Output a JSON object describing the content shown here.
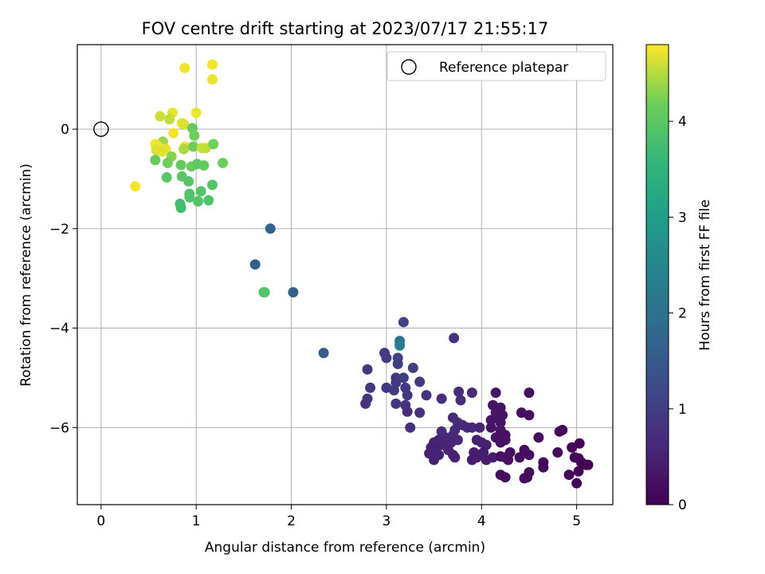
{
  "chart_data": {
    "type": "scatter",
    "title": "FOV centre drift starting at 2023/07/17 21:55:17",
    "xlabel": "Angular distance from reference (arcmin)",
    "ylabel": "Rotation from reference (arcmin)",
    "xlim": [
      -0.25,
      5.38
    ],
    "ylim": [
      -7.55,
      1.7
    ],
    "xticks": [
      "0",
      "1",
      "2",
      "3",
      "4",
      "5"
    ],
    "yticks": [
      "0",
      "−2",
      "−4",
      "−6"
    ],
    "grid": true,
    "legend": {
      "position": "top-right",
      "entries": [
        "Reference platepar"
      ]
    },
    "colorbar": {
      "label": "Hours from first FF file",
      "range": [
        0,
        4.8
      ],
      "ticks": [
        "0",
        "1",
        "2",
        "3",
        "4"
      ],
      "colormap": "viridis"
    },
    "reference_point": {
      "x": 0,
      "y": 0,
      "label": "Reference platepar"
    },
    "series": [
      {
        "points": [
          [
            0.88,
            1.23,
            4.75
          ],
          [
            1.17,
            1.3,
            4.75
          ],
          [
            1.17,
            1.0,
            4.72
          ],
          [
            1.0,
            0.33,
            4.72
          ],
          [
            0.75,
            0.33,
            4.7
          ],
          [
            0.62,
            0.26,
            4.6
          ],
          [
            0.72,
            0.2,
            4.55
          ],
          [
            0.85,
            0.12,
            4.7
          ],
          [
            0.87,
            0.1,
            4.65
          ],
          [
            0.96,
            0.02,
            4.1
          ],
          [
            0.76,
            -0.08,
            4.75
          ],
          [
            0.98,
            -0.13,
            4.2
          ],
          [
            0.65,
            -0.25,
            4.4
          ],
          [
            0.57,
            -0.3,
            4.75
          ],
          [
            0.6,
            -0.35,
            4.73
          ],
          [
            0.62,
            -0.38,
            4.72
          ],
          [
            0.68,
            -0.4,
            4.7
          ],
          [
            0.64,
            -0.45,
            4.68
          ],
          [
            0.58,
            -0.42,
            4.66
          ],
          [
            0.88,
            -0.35,
            4.73
          ],
          [
            0.87,
            -0.4,
            4.45
          ],
          [
            0.97,
            -0.35,
            4.2
          ],
          [
            1.06,
            -0.38,
            4.6
          ],
          [
            1.1,
            -0.38,
            4.55
          ],
          [
            1.18,
            -0.3,
            4.2
          ],
          [
            0.74,
            -0.55,
            4.3
          ],
          [
            0.57,
            -0.62,
            4.1
          ],
          [
            0.7,
            -0.68,
            4.2
          ],
          [
            0.84,
            -0.72,
            4.1
          ],
          [
            0.95,
            -0.75,
            4.15
          ],
          [
            1.01,
            -0.7,
            4.05
          ],
          [
            1.08,
            -0.73,
            4.1
          ],
          [
            1.28,
            -0.68,
            4.15
          ],
          [
            0.69,
            -0.97,
            4.0
          ],
          [
            0.85,
            -0.95,
            4.0
          ],
          [
            0.92,
            -1.05,
            3.95
          ],
          [
            0.36,
            -1.15,
            4.75
          ],
          [
            1.17,
            -1.12,
            3.9
          ],
          [
            1.05,
            -1.25,
            3.95
          ],
          [
            0.93,
            -1.3,
            3.85
          ],
          [
            0.93,
            -1.37,
            3.9
          ],
          [
            1.02,
            -1.45,
            3.9
          ],
          [
            1.13,
            -1.43,
            3.9
          ],
          [
            0.83,
            -1.5,
            3.7
          ],
          [
            0.84,
            -1.58,
            3.75
          ],
          [
            1.78,
            -2.0,
            1.7
          ],
          [
            1.62,
            -2.72,
            1.65
          ],
          [
            1.72,
            -3.28,
            3.9
          ],
          [
            1.71,
            -3.28,
            3.95
          ],
          [
            2.02,
            -3.28,
            1.65
          ],
          [
            2.34,
            -4.5,
            1.55
          ],
          [
            3.14,
            -4.26,
            2.0
          ],
          [
            3.14,
            -4.35,
            2.3
          ],
          [
            3.18,
            -3.88,
            1.1
          ],
          [
            3.71,
            -4.2,
            0.8
          ],
          [
            2.98,
            -4.5,
            0.95
          ],
          [
            3.0,
            -4.6,
            0.95
          ],
          [
            3.12,
            -4.6,
            1.05
          ],
          [
            3.28,
            -4.8,
            1.0
          ],
          [
            3.12,
            -4.72,
            1.0
          ],
          [
            2.8,
            -4.83,
            0.9
          ],
          [
            3.1,
            -5.0,
            0.85
          ],
          [
            3.18,
            -5.0,
            1.0
          ],
          [
            3.1,
            -5.1,
            0.9
          ],
          [
            3.35,
            -5.08,
            0.85
          ],
          [
            2.83,
            -5.2,
            0.9
          ],
          [
            3.0,
            -5.2,
            0.9
          ],
          [
            3.08,
            -5.25,
            0.95
          ],
          [
            3.2,
            -5.2,
            0.85
          ],
          [
            3.22,
            -5.35,
            0.9
          ],
          [
            2.8,
            -5.42,
            0.85
          ],
          [
            3.42,
            -5.35,
            0.8
          ],
          [
            3.58,
            -5.42,
            0.75
          ],
          [
            3.76,
            -5.28,
            0.7
          ],
          [
            3.9,
            -5.3,
            0.65
          ],
          [
            2.78,
            -5.52,
            0.8
          ],
          [
            3.1,
            -5.52,
            0.85
          ],
          [
            3.2,
            -5.55,
            0.8
          ],
          [
            3.22,
            -5.68,
            0.75
          ],
          [
            3.35,
            -5.7,
            0.8
          ],
          [
            3.78,
            -5.45,
            0.7
          ],
          [
            3.25,
            -6.0,
            0.75
          ],
          [
            3.58,
            -6.08,
            0.7
          ],
          [
            3.7,
            -5.8,
            0.7
          ],
          [
            3.75,
            -5.9,
            0.68
          ],
          [
            3.8,
            -5.95,
            0.65
          ],
          [
            3.72,
            -6.05,
            0.6
          ],
          [
            3.85,
            -6.0,
            0.62
          ],
          [
            3.9,
            -6.0,
            0.6
          ],
          [
            3.7,
            -6.15,
            0.6
          ],
          [
            3.62,
            -6.2,
            0.58
          ],
          [
            3.55,
            -6.25,
            0.55
          ],
          [
            3.5,
            -6.3,
            0.55
          ],
          [
            3.58,
            -6.35,
            0.55
          ],
          [
            3.68,
            -6.3,
            0.6
          ],
          [
            3.75,
            -6.25,
            0.58
          ],
          [
            3.47,
            -6.4,
            0.5
          ],
          [
            3.52,
            -6.45,
            0.5
          ],
          [
            3.65,
            -6.45,
            0.55
          ],
          [
            3.45,
            -6.52,
            0.5
          ],
          [
            3.55,
            -6.55,
            0.5
          ],
          [
            3.7,
            -6.55,
            0.48
          ],
          [
            3.72,
            -6.6,
            0.5
          ],
          [
            3.5,
            -6.65,
            0.5
          ],
          [
            3.98,
            -6.0,
            0.55
          ],
          [
            3.95,
            -6.25,
            0.5
          ],
          [
            4.0,
            -6.3,
            0.5
          ],
          [
            4.05,
            -6.35,
            0.48
          ],
          [
            3.92,
            -6.5,
            0.45
          ],
          [
            4.02,
            -6.5,
            0.45
          ],
          [
            3.95,
            -6.6,
            0.45
          ],
          [
            3.9,
            -6.65,
            0.45
          ],
          [
            4.05,
            -6.65,
            0.45
          ],
          [
            4.12,
            -6.6,
            0.4
          ],
          [
            4.15,
            -5.3,
            0.3
          ],
          [
            4.12,
            -5.55,
            0.3
          ],
          [
            4.2,
            -5.6,
            0.3
          ],
          [
            4.15,
            -5.7,
            0.3
          ],
          [
            4.22,
            -5.75,
            0.3
          ],
          [
            4.18,
            -5.8,
            0.28
          ],
          [
            4.1,
            -5.85,
            0.28
          ],
          [
            4.2,
            -5.9,
            0.28
          ],
          [
            4.1,
            -6.0,
            0.28
          ],
          [
            4.2,
            -6.05,
            0.3
          ],
          [
            4.25,
            -6.15,
            0.25
          ],
          [
            4.15,
            -6.2,
            0.25
          ],
          [
            4.25,
            -6.25,
            0.3
          ],
          [
            4.2,
            -6.3,
            0.25
          ],
          [
            4.5,
            -5.3,
            0.2
          ],
          [
            4.42,
            -5.7,
            0.2
          ],
          [
            4.5,
            -5.75,
            0.2
          ],
          [
            4.6,
            -6.2,
            0.15
          ],
          [
            4.45,
            -6.45,
            0.2
          ],
          [
            4.5,
            -6.55,
            0.2
          ],
          [
            4.3,
            -6.5,
            0.25
          ],
          [
            4.2,
            -6.58,
            0.25
          ],
          [
            4.25,
            -6.6,
            0.28
          ],
          [
            4.28,
            -6.65,
            0.25
          ],
          [
            4.4,
            -6.6,
            0.22
          ],
          [
            4.2,
            -6.95,
            0.2
          ],
          [
            4.25,
            -7.0,
            0.15
          ],
          [
            4.45,
            -7.02,
            0.15
          ],
          [
            4.48,
            -7.0,
            0.15
          ],
          [
            4.5,
            -6.9,
            0.15
          ],
          [
            4.65,
            -6.7,
            0.1
          ],
          [
            4.65,
            -6.8,
            0.1
          ],
          [
            4.8,
            -6.5,
            0.1
          ],
          [
            4.82,
            -6.08,
            0.1
          ],
          [
            4.85,
            -6.05,
            0.08
          ],
          [
            4.95,
            -6.4,
            0.05
          ],
          [
            5.03,
            -6.32,
            0.05
          ],
          [
            5.02,
            -6.62,
            0.05
          ],
          [
            5.05,
            -6.7,
            0.03
          ],
          [
            5.1,
            -6.75,
            0.02
          ],
          [
            5.12,
            -6.75,
            0.02
          ],
          [
            4.98,
            -6.6,
            0.05
          ],
          [
            5.02,
            -6.88,
            0.05
          ],
          [
            4.92,
            -6.95,
            0.05
          ],
          [
            5.0,
            -7.12,
            0.05
          ]
        ]
      }
    ]
  }
}
